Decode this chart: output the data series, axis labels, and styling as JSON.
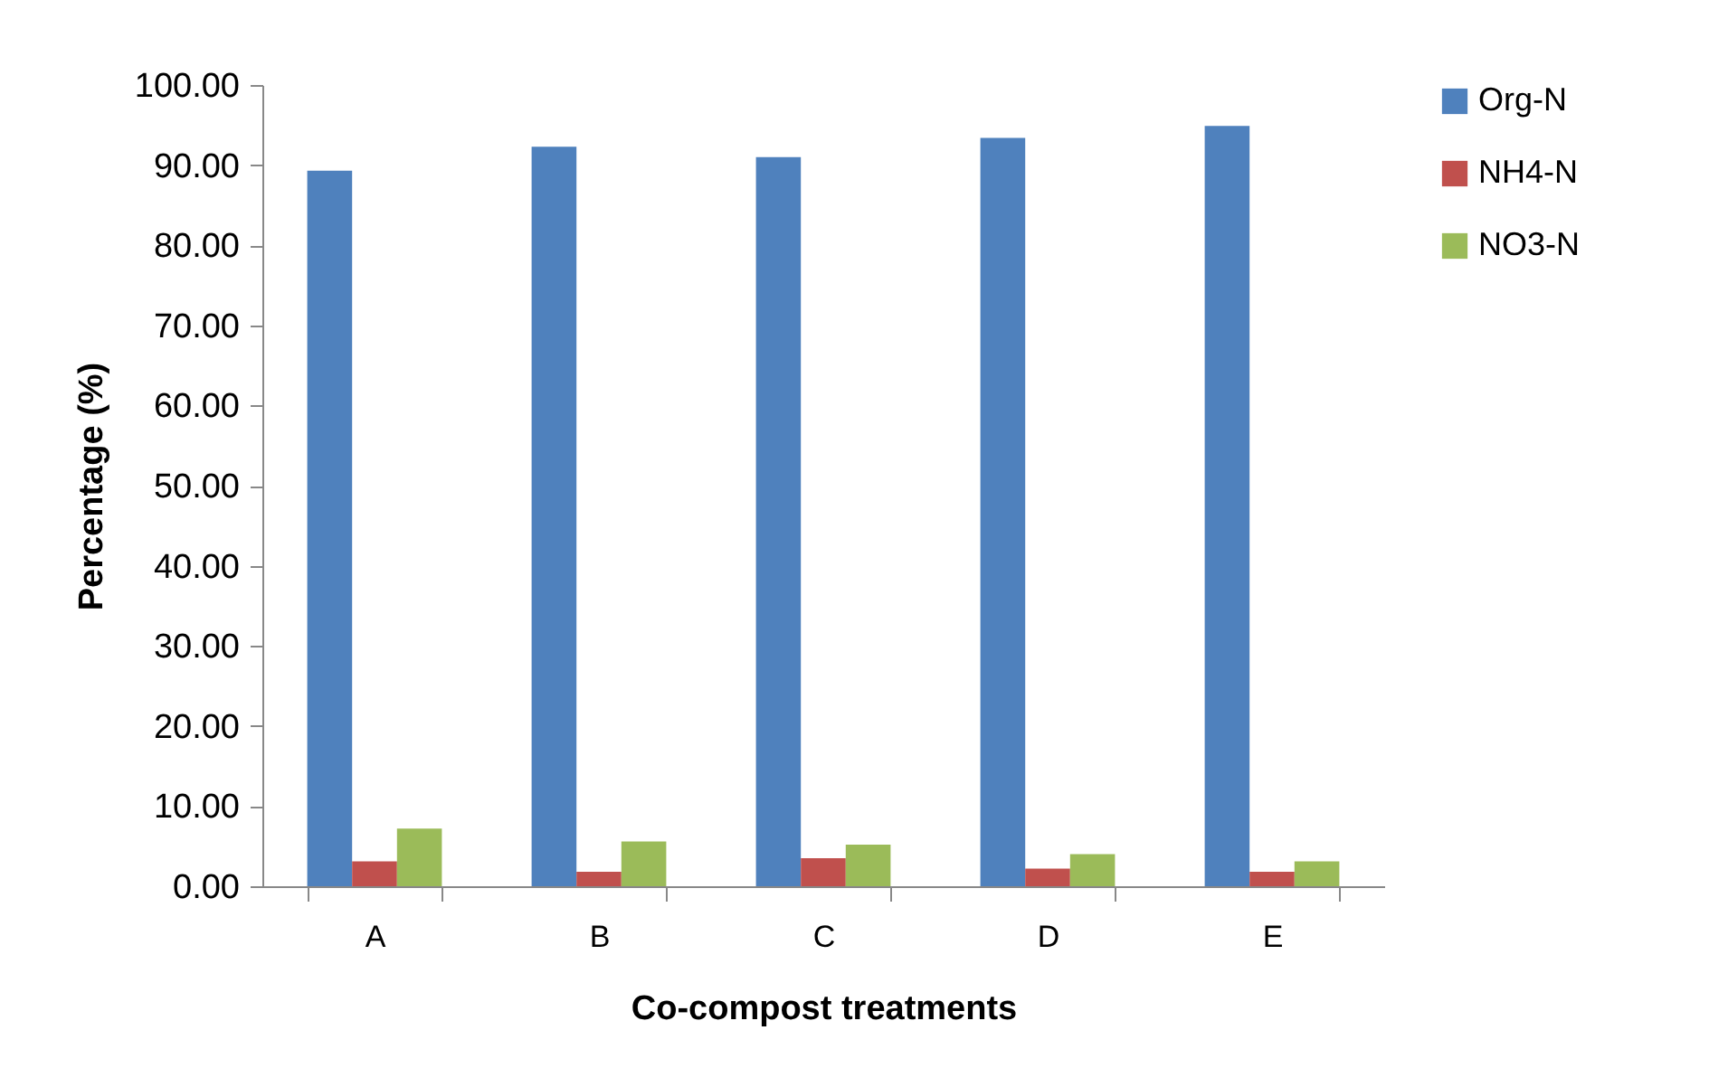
{
  "chart_data": {
    "type": "bar",
    "xlabel": "Co-compost treatments",
    "ylabel": "Percentage (%)",
    "categories": [
      "A",
      "B",
      "C",
      "D",
      "E"
    ],
    "series": [
      {
        "name": "Org-N",
        "color": "#4f81bd",
        "values": [
          89.3,
          92.3,
          91.0,
          93.4,
          94.9
        ]
      },
      {
        "name": "NH4-N",
        "color": "#c0504d",
        "values": [
          3.1,
          1.8,
          3.5,
          2.2,
          1.8
        ]
      },
      {
        "name": "NO3-N",
        "color": "#9bbb59",
        "values": [
          7.2,
          5.6,
          5.2,
          4.0,
          3.1
        ]
      }
    ],
    "ylim": [
      0,
      100
    ],
    "yticks": [
      {
        "value": 0,
        "label": "0.00"
      },
      {
        "value": 10,
        "label": "10.00"
      },
      {
        "value": 20,
        "label": "20.00"
      },
      {
        "value": 30,
        "label": "30.00"
      },
      {
        "value": 40,
        "label": "40.00"
      },
      {
        "value": 50,
        "label": "50.00"
      },
      {
        "value": 60,
        "label": "60.00"
      },
      {
        "value": 70,
        "label": "70.00"
      },
      {
        "value": 80,
        "label": "80.00"
      },
      {
        "value": 90,
        "label": "90.00"
      },
      {
        "value": 100,
        "label": "100.00"
      }
    ],
    "grid": false,
    "legend": "right"
  }
}
